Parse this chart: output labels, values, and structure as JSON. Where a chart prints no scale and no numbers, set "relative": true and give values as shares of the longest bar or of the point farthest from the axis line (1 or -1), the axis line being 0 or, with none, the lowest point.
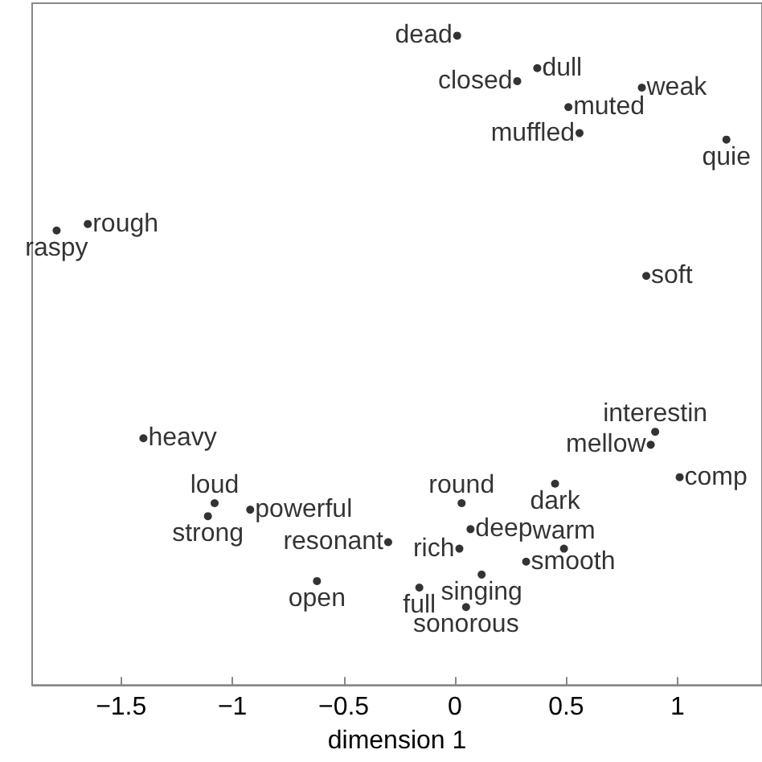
{
  "chart_data": {
    "type": "scatter",
    "xlabel": "dimension 1",
    "relative": true,
    "marker": "circle",
    "grid": false,
    "xlim": [
      -1.9,
      1.38
    ],
    "xticks": [
      -1.5,
      -1,
      -0.5,
      0,
      0.5,
      1
    ],
    "series": [
      {
        "color": "#000000",
        "x": [
          0.01,
          0.28,
          0.37,
          0.84,
          0.51,
          0.56,
          1.22,
          -1.65,
          -1.79,
          0.86,
          -1.4,
          0.9,
          0.88,
          1.01,
          0.45,
          -1.08,
          0.03,
          -0.92,
          -1.11,
          0.07,
          -0.3,
          0.49,
          0.02,
          0.32,
          0.12,
          -0.62,
          -0.16,
          0.05
        ],
        "values": [
          1.0,
          0.93,
          0.95,
          0.92,
          0.89,
          0.85,
          0.84,
          0.71,
          0.7,
          0.63,
          0.38,
          0.39,
          0.37,
          0.32,
          0.31,
          0.28,
          0.28,
          0.27,
          0.26,
          0.24,
          0.22,
          0.21,
          0.21,
          0.19,
          0.17,
          0.16,
          0.15,
          0.12
        ]
      }
    ],
    "annotations": [
      {
        "text": "dead",
        "x": 0.01,
        "y": 1.0
      },
      {
        "text": "closed",
        "x": 0.28,
        "y": 0.93
      },
      {
        "text": "dull",
        "x": 0.37,
        "y": 0.95
      },
      {
        "text": "weak",
        "x": 0.84,
        "y": 0.92
      },
      {
        "text": "muted",
        "x": 0.51,
        "y": 0.89
      },
      {
        "text": "muffled",
        "x": 0.56,
        "y": 0.85
      },
      {
        "text": "quie",
        "x": 1.22,
        "y": 0.84
      },
      {
        "text": "rough",
        "x": -1.65,
        "y": 0.71
      },
      {
        "text": "raspy",
        "x": -1.79,
        "y": 0.7
      },
      {
        "text": "soft",
        "x": 0.86,
        "y": 0.63
      },
      {
        "text": "heavy",
        "x": -1.4,
        "y": 0.38
      },
      {
        "text": "interestin",
        "x": 0.9,
        "y": 0.39
      },
      {
        "text": "mellow",
        "x": 0.88,
        "y": 0.37
      },
      {
        "text": "comp",
        "x": 1.01,
        "y": 0.32
      },
      {
        "text": "dark",
        "x": 0.45,
        "y": 0.31
      },
      {
        "text": "loud",
        "x": -1.08,
        "y": 0.28
      },
      {
        "text": "round",
        "x": 0.03,
        "y": 0.28
      },
      {
        "text": "powerful",
        "x": -0.92,
        "y": 0.27
      },
      {
        "text": "strong",
        "x": -1.11,
        "y": 0.26
      },
      {
        "text": "deep",
        "x": 0.07,
        "y": 0.24
      },
      {
        "text": "resonant",
        "x": -0.3,
        "y": 0.22
      },
      {
        "text": "warm",
        "x": 0.49,
        "y": 0.21
      },
      {
        "text": "rich",
        "x": 0.02,
        "y": 0.21
      },
      {
        "text": "smooth",
        "x": 0.32,
        "y": 0.19
      },
      {
        "text": "singing",
        "x": 0.12,
        "y": 0.17
      },
      {
        "text": "open",
        "x": -0.62,
        "y": 0.16
      },
      {
        "text": "full",
        "x": -0.16,
        "y": 0.15
      },
      {
        "text": "sonorous",
        "x": 0.05,
        "y": 0.12
      }
    ]
  }
}
